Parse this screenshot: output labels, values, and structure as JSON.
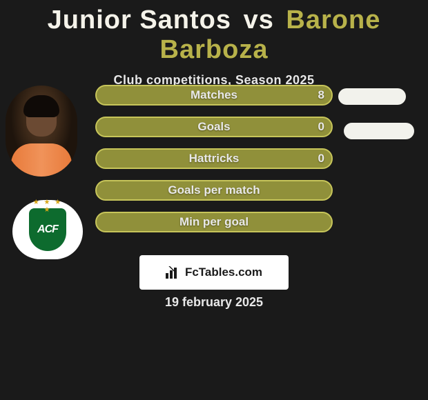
{
  "colors": {
    "bg": "#1a1a1a",
    "title_left": "#f5f3ea",
    "title_right": "#b8b24a",
    "text": "#e8e8e8",
    "row_fill": "#90903a",
    "row_border": "#c7c55a",
    "pill_right": "#f2f2ec",
    "crest_green": "#0d6b2e",
    "crest_bg": "#ffffff",
    "logo_bg": "#ffffff"
  },
  "typography": {
    "title_fontsize": 38,
    "title_weight": 900,
    "subtitle_fontsize": 18,
    "row_label_fontsize": 17,
    "date_fontsize": 18
  },
  "title": {
    "player_a": "Junior Santos",
    "vs": "vs",
    "player_b": "Barone Barboza"
  },
  "subtitle": "Club competitions, Season 2025",
  "stats": [
    {
      "label": "Matches",
      "value_a": "8",
      "has_right_pill": true
    },
    {
      "label": "Goals",
      "value_a": "0",
      "has_right_pill": true
    },
    {
      "label": "Hattricks",
      "value_a": "0",
      "has_right_pill": false
    },
    {
      "label": "Goals per match",
      "value_a": "",
      "has_right_pill": false
    },
    {
      "label": "Min per goal",
      "value_a": "",
      "has_right_pill": false
    }
  ],
  "crest": {
    "initials": "ACF"
  },
  "logo_text": "FcTables.com",
  "date_text": "19 february 2025"
}
